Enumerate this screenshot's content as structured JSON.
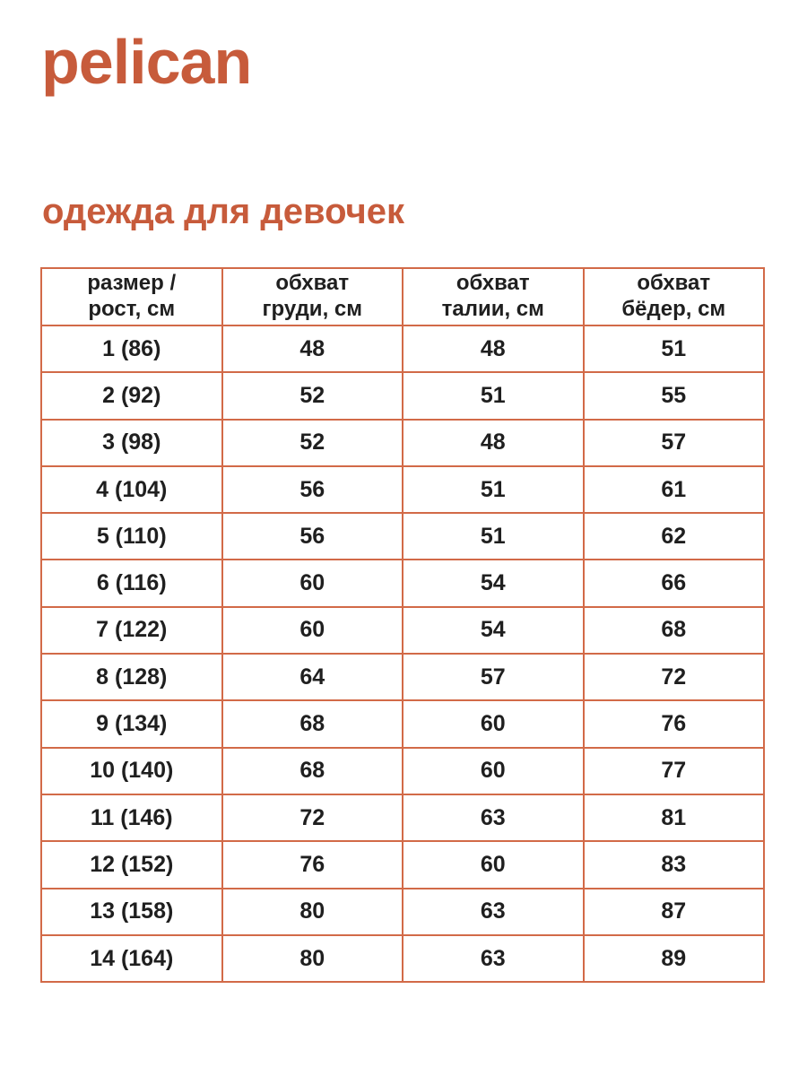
{
  "brand": {
    "logo": "pelican"
  },
  "heading": "одежда для девочек",
  "colors": {
    "accent": "#c75b3b",
    "table_border": "#d26a48",
    "table_outer_border": "#c4512f",
    "text": "#1f1f1f"
  },
  "table": {
    "headers": [
      {
        "line1": "размер /",
        "line2": "рост, см"
      },
      {
        "line1": "обхват",
        "line2": "груди, см"
      },
      {
        "line1": "обхват",
        "line2": "талии, см"
      },
      {
        "line1": "обхват",
        "line2": "бёдер, см"
      }
    ],
    "rows": [
      [
        "1 (86)",
        "48",
        "48",
        "51"
      ],
      [
        "2 (92)",
        "52",
        "51",
        "55"
      ],
      [
        "3 (98)",
        "52",
        "48",
        "57"
      ],
      [
        "4 (104)",
        "56",
        "51",
        "61"
      ],
      [
        "5 (110)",
        "56",
        "51",
        "62"
      ],
      [
        "6 (116)",
        "60",
        "54",
        "66"
      ],
      [
        "7 (122)",
        "60",
        "54",
        "68"
      ],
      [
        "8 (128)",
        "64",
        "57",
        "72"
      ],
      [
        "9 (134)",
        "68",
        "60",
        "76"
      ],
      [
        "10 (140)",
        "68",
        "60",
        "77"
      ],
      [
        "11 (146)",
        "72",
        "63",
        "81"
      ],
      [
        "12 (152)",
        "76",
        "60",
        "83"
      ],
      [
        "13 (158)",
        "80",
        "63",
        "87"
      ],
      [
        "14 (164)",
        "80",
        "63",
        "89"
      ]
    ]
  }
}
